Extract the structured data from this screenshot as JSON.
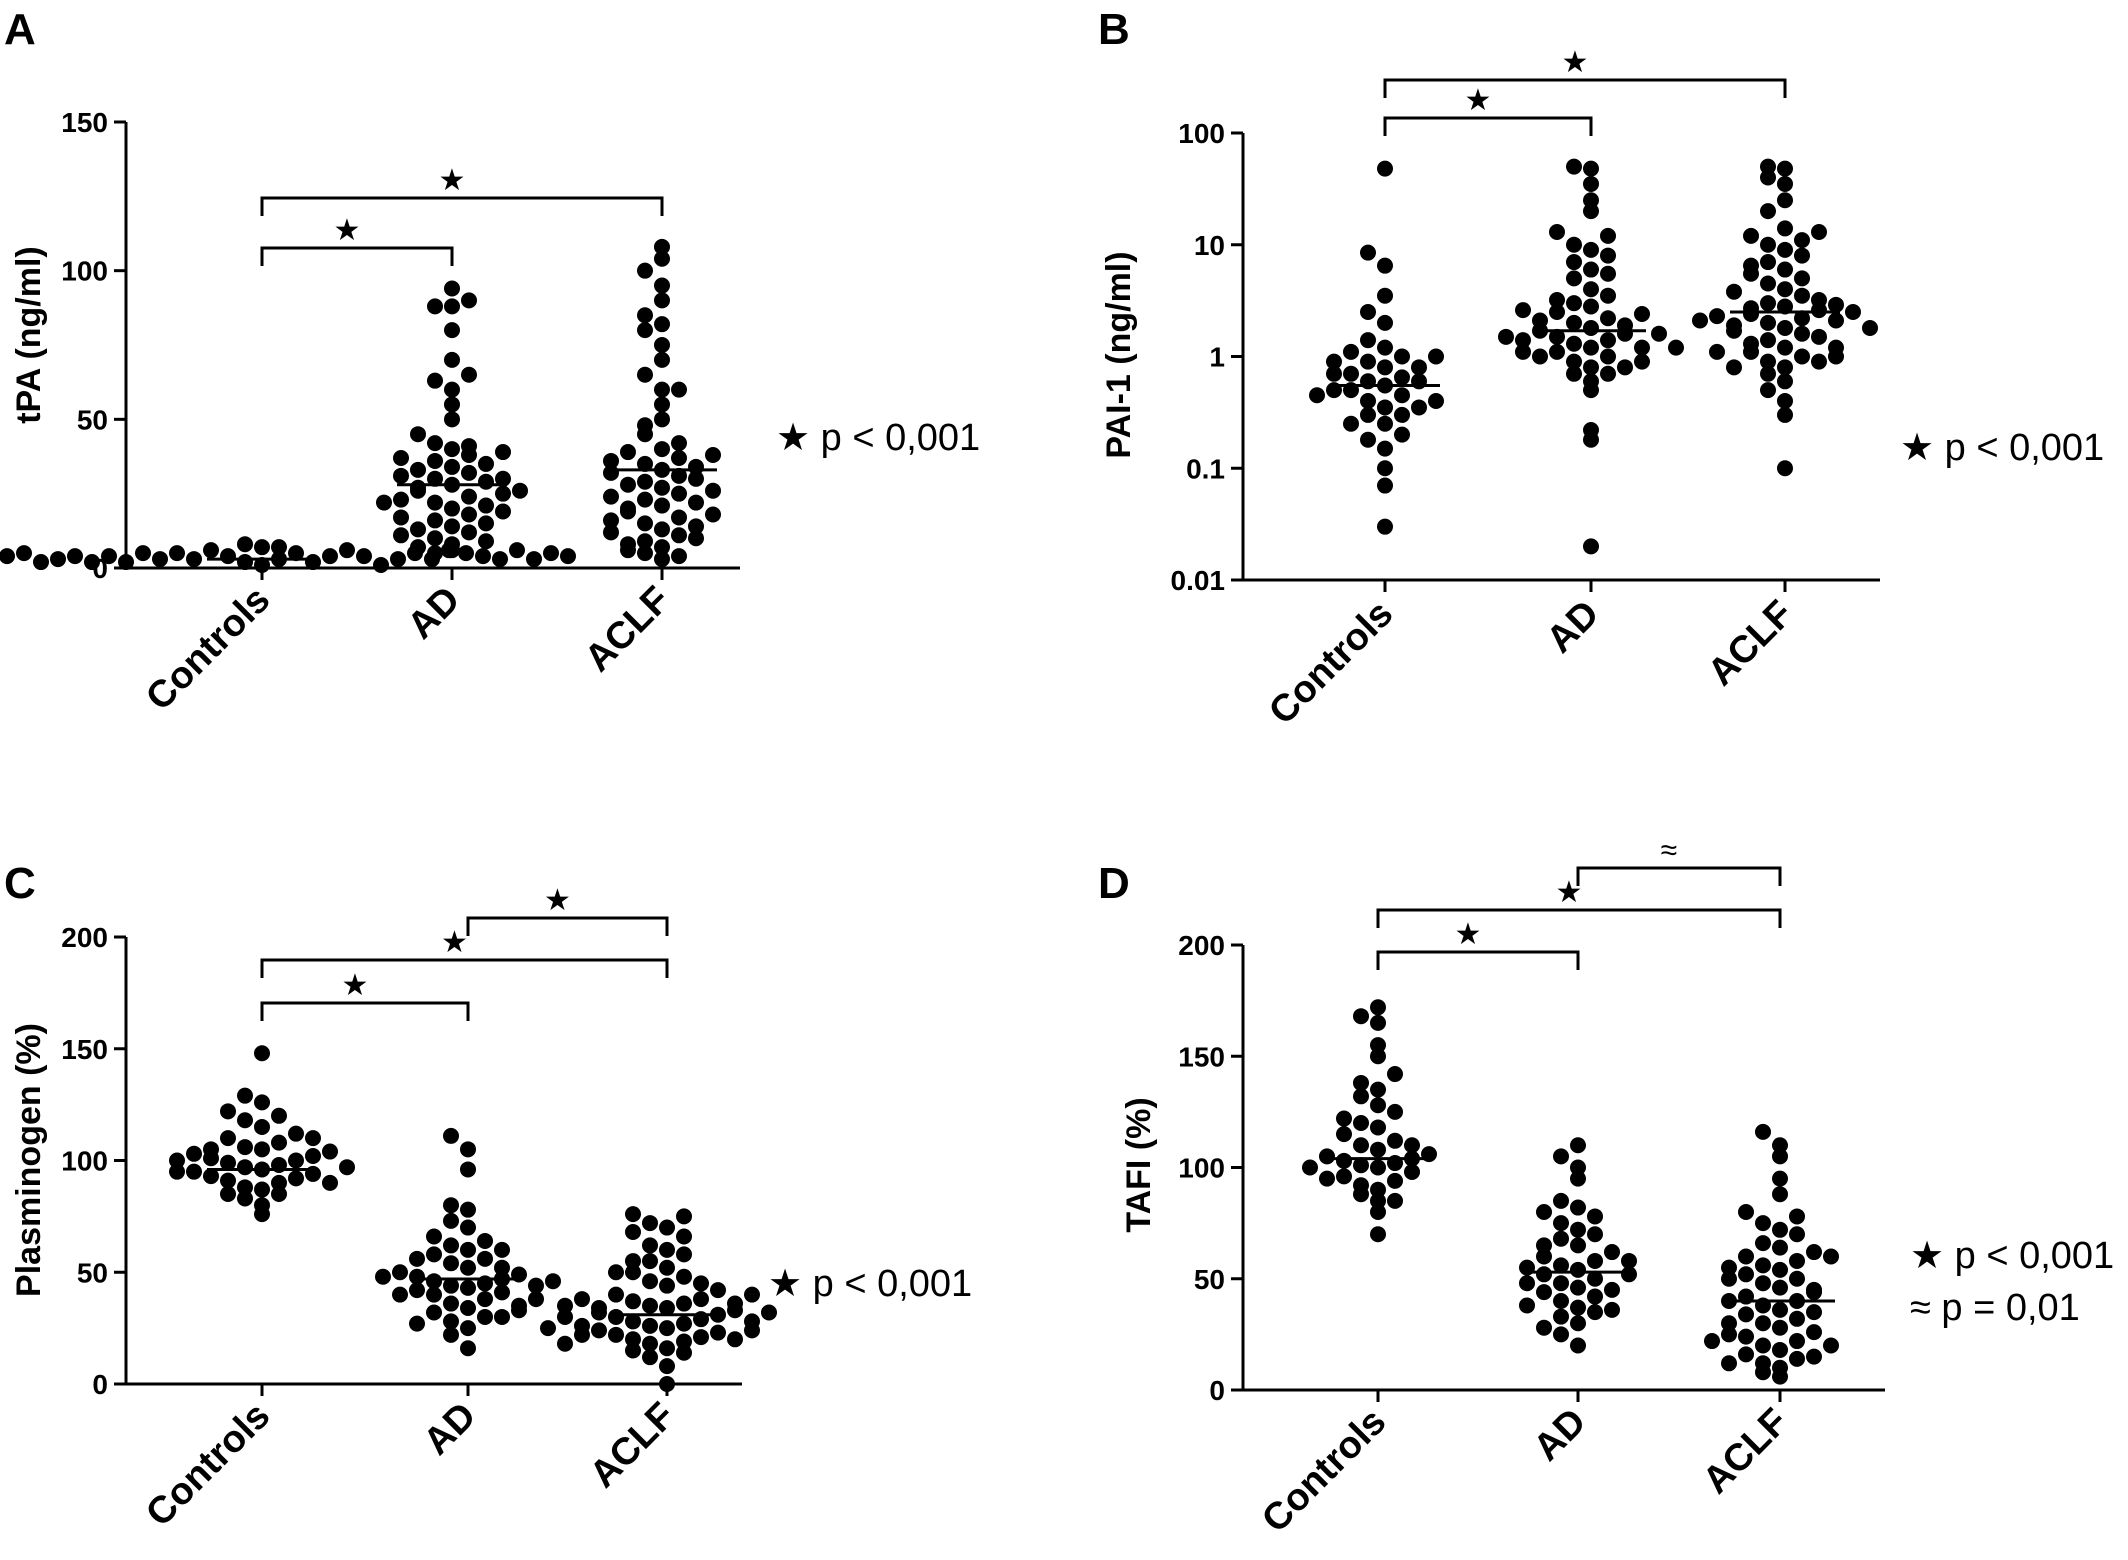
{
  "chart_data": [
    {
      "panel": "A",
      "type": "scatter",
      "ylabel": "tPA (ng/ml)",
      "yscale": "linear",
      "ylim": [
        0,
        150
      ],
      "yticks": [
        0,
        50,
        100,
        150
      ],
      "yticklabels": [
        "0",
        "50",
        "100",
        "150"
      ],
      "categories": [
        "Controls",
        "AD",
        "ACLF"
      ],
      "medians": [
        3,
        28,
        33
      ],
      "points": [
        [
          1,
          2,
          3,
          4,
          5,
          6,
          2,
          3,
          4,
          5,
          6,
          7,
          3,
          4,
          5,
          8,
          1,
          2,
          3,
          4,
          5,
          2,
          3,
          4,
          6,
          7,
          3,
          5,
          2,
          4,
          5,
          3,
          4,
          6,
          2,
          3,
          4,
          5,
          3,
          4
        ],
        [
          6,
          8,
          10,
          12,
          14,
          16,
          18,
          20,
          22,
          24,
          26,
          28,
          30,
          32,
          34,
          36,
          38,
          40,
          42,
          5,
          7,
          9,
          11,
          13,
          15,
          17,
          19,
          21,
          23,
          25,
          27,
          29,
          31,
          33,
          35,
          37,
          39,
          41,
          45,
          50,
          55,
          60,
          63,
          65,
          70,
          80,
          88,
          88,
          90,
          94,
          22,
          26,
          30
        ],
        [
          3,
          5,
          7,
          9,
          11,
          13,
          15,
          17,
          19,
          21,
          23,
          25,
          27,
          29,
          31,
          33,
          35,
          37,
          39,
          4,
          6,
          8,
          10,
          12,
          14,
          16,
          18,
          20,
          22,
          24,
          26,
          28,
          30,
          32,
          34,
          36,
          38,
          40,
          45,
          50,
          55,
          60,
          65,
          70,
          75,
          80,
          82,
          85,
          90,
          95,
          100,
          104,
          108,
          60,
          48,
          42
        ]
      ],
      "brackets": [
        {
          "from": "Controls",
          "to": "AD",
          "symbol": "★"
        },
        {
          "from": "Controls",
          "to": "ACLF",
          "symbol": "★"
        }
      ],
      "notes": [
        "★ p < 0,001"
      ]
    },
    {
      "panel": "B",
      "type": "scatter",
      "ylabel": "PAI-1 (ng/ml)",
      "yscale": "log",
      "ylim": [
        0.01,
        100
      ],
      "yticks": [
        0.01,
        0.1,
        1,
        10,
        100
      ],
      "yticklabels": [
        "0.01",
        "0.1",
        "1",
        "10",
        "100"
      ],
      "categories": [
        "Controls",
        "AD",
        "ACLF"
      ],
      "medians": [
        0.55,
        1.7,
        2.5
      ],
      "points": [
        [
          0.03,
          0.07,
          0.1,
          0.15,
          0.18,
          0.2,
          0.25,
          0.3,
          0.35,
          0.4,
          0.45,
          0.5,
          0.55,
          0.6,
          0.65,
          0.7,
          0.8,
          0.9,
          1.0,
          1.1,
          1.2,
          1.4,
          0.35,
          0.5,
          0.6,
          0.7,
          0.8,
          0.9,
          1.0,
          0.3,
          0.4,
          2,
          2.5,
          3.5,
          6.5,
          8.5,
          48,
          0.25,
          0.45
        ],
        [
          0.02,
          0.18,
          0.22,
          0.5,
          0.6,
          0.7,
          0.8,
          0.9,
          1.0,
          1.1,
          1.2,
          1.3,
          1.4,
          1.5,
          1.6,
          1.7,
          1.8,
          2.0,
          2.2,
          2.5,
          2.8,
          3.0,
          3.5,
          4.0,
          5.0,
          6.0,
          7.0,
          8.0,
          9.0,
          10,
          12,
          13,
          20,
          25,
          35,
          48,
          50,
          0.8,
          1.0,
          1.2,
          1.4,
          1.6,
          1.9,
          2.1,
          2.4,
          3.2,
          0.9,
          1.5,
          1.2,
          0.7,
          2.6,
          5.5,
          1.1
        ],
        [
          0.1,
          0.3,
          0.4,
          0.5,
          0.6,
          0.7,
          0.8,
          0.9,
          1.0,
          1.1,
          1.2,
          1.4,
          1.6,
          1.8,
          2.0,
          2.2,
          2.4,
          2.6,
          2.8,
          3.0,
          3.5,
          4.0,
          4.5,
          5.0,
          6.0,
          7.0,
          8.0,
          9.0,
          10,
          11,
          12,
          13,
          14,
          20,
          25,
          35,
          40,
          48,
          50,
          1.3,
          1.5,
          1.7,
          1.9,
          2.1,
          2.3,
          2.5,
          2.7,
          3.2,
          0.9,
          0.8,
          1.0,
          1.2,
          6.5,
          5.5,
          3.8,
          2.9,
          2.1,
          1.8,
          1.1
        ]
      ],
      "brackets": [
        {
          "from": "Controls",
          "to": "AD",
          "symbol": "★"
        },
        {
          "from": "Controls",
          "to": "ACLF",
          "symbol": "★"
        }
      ],
      "notes": [
        "★ p < 0,001"
      ]
    },
    {
      "panel": "C",
      "type": "scatter",
      "ylabel": "Plasminogen (%)",
      "yscale": "linear",
      "ylim": [
        0,
        200
      ],
      "yticks": [
        0,
        50,
        100,
        150,
        200
      ],
      "yticklabels": [
        "0",
        "50",
        "100",
        "150",
        "200"
      ],
      "categories": [
        "Controls",
        "AD",
        "ACLF"
      ],
      "medians": [
        96,
        47,
        31
      ],
      "points": [
        [
          76,
          80,
          83,
          85,
          87,
          88,
          90,
          91,
          92,
          93,
          94,
          95,
          96,
          97,
          98,
          99,
          100,
          101,
          102,
          103,
          104,
          105,
          106,
          108,
          110,
          112,
          115,
          118,
          120,
          122,
          126,
          129,
          148,
          90,
          95,
          100,
          105,
          110,
          85,
          97
        ],
        [
          16,
          22,
          25,
          28,
          30,
          32,
          34,
          36,
          38,
          40,
          41,
          42,
          43,
          44,
          45,
          46,
          47,
          48,
          49,
          50,
          52,
          54,
          56,
          58,
          60,
          62,
          64,
          66,
          70,
          73,
          78,
          80,
          96,
          105,
          111,
          35,
          40,
          44,
          48,
          52,
          56,
          60,
          30,
          38,
          46,
          27,
          33
        ],
        [
          0,
          8,
          12,
          14,
          16,
          18,
          19,
          20,
          21,
          22,
          23,
          24,
          25,
          26,
          27,
          28,
          29,
          30,
          31,
          32,
          33,
          34,
          35,
          36,
          37,
          38,
          40,
          42,
          44,
          46,
          48,
          50,
          52,
          55,
          58,
          60,
          62,
          66,
          68,
          70,
          72,
          75,
          76,
          20,
          22,
          24,
          26,
          28,
          30,
          32,
          34,
          36,
          38,
          40,
          45,
          50,
          55,
          15,
          18,
          25,
          35
        ]
      ],
      "brackets": [
        {
          "from": "Controls",
          "to": "AD",
          "symbol": "★"
        },
        {
          "from": "Controls",
          "to": "ACLF",
          "symbol": "★"
        },
        {
          "from": "AD",
          "to": "ACLF",
          "symbol": "★"
        }
      ],
      "notes": [
        "★ p < 0,001"
      ]
    },
    {
      "panel": "D",
      "type": "scatter",
      "ylabel": "TAFI (%)",
      "yscale": "linear",
      "ylim": [
        0,
        200
      ],
      "yticks": [
        0,
        50,
        100,
        150,
        200
      ],
      "yticklabels": [
        "0",
        "50",
        "100",
        "150",
        "200"
      ],
      "categories": [
        "Controls",
        "AD",
        "ACLF"
      ],
      "medians": [
        104,
        53,
        40
      ],
      "points": [
        [
          70,
          80,
          85,
          88,
          90,
          92,
          94,
          96,
          98,
          100,
          101,
          102,
          103,
          104,
          105,
          106,
          108,
          110,
          112,
          115,
          118,
          120,
          125,
          128,
          132,
          135,
          138,
          142,
          150,
          155,
          165,
          168,
          172,
          95,
          100,
          110,
          85,
          122
        ],
        [
          20,
          25,
          30,
          33,
          35,
          37,
          40,
          42,
          44,
          46,
          48,
          50,
          52,
          54,
          56,
          58,
          60,
          62,
          65,
          68,
          70,
          72,
          75,
          78,
          80,
          82,
          85,
          95,
          100,
          105,
          110,
          36,
          45,
          55,
          65,
          38,
          48,
          58,
          28,
          52
        ],
        [
          6,
          8,
          10,
          12,
          14,
          16,
          18,
          20,
          22,
          24,
          26,
          28,
          30,
          32,
          34,
          36,
          38,
          40,
          42,
          44,
          46,
          48,
          50,
          52,
          54,
          56,
          58,
          60,
          62,
          64,
          66,
          70,
          72,
          75,
          78,
          80,
          88,
          95,
          105,
          110,
          116,
          15,
          25,
          35,
          45,
          55,
          20,
          30,
          40,
          50,
          60,
          12,
          22
        ]
      ],
      "brackets": [
        {
          "from": "Controls",
          "to": "AD",
          "symbol": "★"
        },
        {
          "from": "Controls",
          "to": "ACLF",
          "symbol": "★"
        },
        {
          "from": "AD",
          "to": "ACLF",
          "symbol": "≈"
        }
      ],
      "notes": [
        "★ p < 0,001",
        "≈ p = 0,01"
      ]
    }
  ]
}
